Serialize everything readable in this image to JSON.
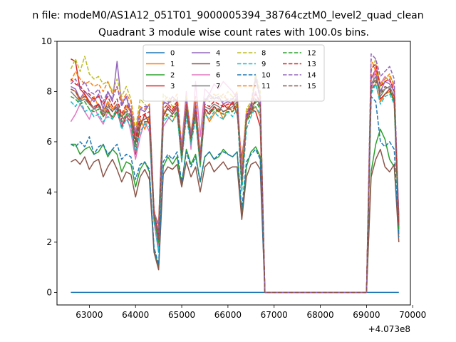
{
  "chart_data": {
    "type": "line",
    "suptitle": "n file: modeM0/AS1A12_051T01_9000005394_38764cztM0_level2_quad_clean",
    "title": "Quadrant 3 module wise count rates with 100.0s bins.",
    "xlabel": "",
    "ylabel": "",
    "x_offset_label": "+4.073e8",
    "xlim": [
      62300,
      69950
    ],
    "ylim": [
      -0.5,
      10
    ],
    "xticks": [
      63000,
      64000,
      65000,
      66000,
      67000,
      68000,
      69000,
      70000
    ],
    "xtick_labels": [
      "63000",
      "64000",
      "65000",
      "66000",
      "67000",
      "68000",
      "69000",
      "70000"
    ],
    "yticks": [
      0,
      2,
      4,
      6,
      8,
      10
    ],
    "ytick_labels": [
      "0",
      "2",
      "4",
      "6",
      "8",
      "10"
    ],
    "legend_position": "top-center",
    "x": [
      62600,
      62700,
      62800,
      62900,
      63000,
      63100,
      63200,
      63300,
      63400,
      63500,
      63600,
      63700,
      63800,
      63900,
      64000,
      64100,
      64200,
      64300,
      64400,
      64500,
      64600,
      64700,
      64800,
      64900,
      65000,
      65100,
      65200,
      65300,
      65400,
      65500,
      65600,
      65700,
      65800,
      65900,
      66000,
      66100,
      66200,
      66300,
      66400,
      66500,
      66600,
      66700,
      66800,
      66900,
      67000,
      68700,
      68800,
      68900,
      69000,
      69100,
      69200,
      69300,
      69400,
      69500,
      69600,
      69700
    ],
    "series": [
      {
        "name": "0",
        "color": "#1f77b4",
        "dash": "solid",
        "values": [
          0,
          0,
          0,
          0,
          0,
          0,
          0,
          0,
          0,
          0,
          0,
          0,
          0,
          0,
          0,
          0,
          0,
          0,
          0,
          0,
          0,
          0,
          0,
          0,
          0,
          0,
          0,
          0,
          0,
          0,
          0,
          0,
          0,
          0,
          0,
          0,
          0,
          0,
          0,
          0,
          0,
          0,
          0,
          0,
          0,
          0,
          0,
          0,
          0,
          0,
          0,
          0,
          0,
          0,
          0,
          0
        ]
      },
      {
        "name": "1",
        "color": "#ff7f0e",
        "dash": "solid",
        "values": [
          8.1,
          8.0,
          7.6,
          7.9,
          7.5,
          7.8,
          7.4,
          7.2,
          7.6,
          7.3,
          7.5,
          7.0,
          7.4,
          7.2,
          6.2,
          6.9,
          6.5,
          7.0,
          3.0,
          2.8,
          7.3,
          7.0,
          6.8,
          7.2,
          5.2,
          7.4,
          6.3,
          7.0,
          5.0,
          7.2,
          6.8,
          7.1,
          7.3,
          6.9,
          7.4,
          7.2,
          7.5,
          4.2,
          6.8,
          7.2,
          7.4,
          7.0,
          0,
          0,
          0,
          0,
          0,
          0,
          0,
          8.1,
          8.3,
          7.6,
          7.9,
          8.0,
          7.7,
          2.5
        ]
      },
      {
        "name": "2",
        "color": "#2ca02c",
        "dash": "solid",
        "values": [
          5.9,
          5.9,
          5.5,
          5.7,
          5.8,
          5.5,
          5.6,
          5.9,
          5.4,
          5.7,
          5.5,
          4.8,
          5.2,
          5.1,
          4.2,
          4.9,
          5.2,
          4.8,
          1.7,
          1.0,
          5.0,
          5.4,
          5.1,
          5.4,
          4.3,
          5.7,
          5.1,
          5.5,
          4.4,
          5.4,
          5.6,
          5.3,
          5.4,
          5.7,
          5.5,
          5.4,
          5.6,
          3.0,
          5.0,
          5.6,
          5.8,
          5.4,
          0,
          0,
          0,
          0,
          0,
          0,
          0,
          4.8,
          5.9,
          6.5,
          6.1,
          5.3,
          5.0,
          2.3
        ]
      },
      {
        "name": "3",
        "color": "#d62728",
        "dash": "solid",
        "values": [
          9.3,
          9.2,
          8.1,
          7.9,
          7.6,
          7.3,
          7.5,
          7.0,
          7.3,
          6.9,
          7.2,
          6.6,
          7.0,
          6.8,
          5.5,
          6.6,
          7.1,
          6.7,
          3.3,
          1.8,
          7.0,
          7.4,
          7.2,
          7.5,
          5.6,
          7.2,
          6.0,
          7.4,
          5.2,
          7.3,
          7.1,
          7.4,
          7.2,
          7.5,
          7.3,
          7.6,
          7.1,
          5.3,
          6.9,
          7.3,
          7.2,
          6.6,
          0,
          0,
          0,
          0,
          0,
          0,
          0,
          8.5,
          8.9,
          7.7,
          7.9,
          8.1,
          7.6,
          3.0
        ]
      },
      {
        "name": "4",
        "color": "#9467bd",
        "dash": "solid",
        "values": [
          8.2,
          8.1,
          7.7,
          8.0,
          7.8,
          7.6,
          7.9,
          7.3,
          8.0,
          7.6,
          9.2,
          7.5,
          7.8,
          7.1,
          6.3,
          7.3,
          7.2,
          7.5,
          3.2,
          2.7,
          7.6,
          7.5,
          7.8,
          7.6,
          5.8,
          7.8,
          6.1,
          7.4,
          5.5,
          7.6,
          7.9,
          7.7,
          7.8,
          7.5,
          7.6,
          7.5,
          7.8,
          4.8,
          7.0,
          7.4,
          8.6,
          7.8,
          0,
          0,
          0,
          0,
          0,
          0,
          0,
          8.6,
          8.7,
          8.0,
          8.4,
          8.3,
          8.0,
          2.8
        ]
      },
      {
        "name": "5",
        "color": "#8c564b",
        "dash": "solid",
        "values": [
          5.2,
          5.3,
          5.1,
          5.4,
          4.9,
          5.2,
          5.3,
          4.6,
          5.0,
          5.3,
          4.9,
          4.4,
          4.8,
          4.7,
          3.8,
          4.6,
          4.9,
          4.5,
          1.6,
          0.9,
          4.7,
          5.0,
          4.9,
          5.1,
          4.2,
          5.2,
          4.6,
          5.0,
          4.0,
          5.0,
          5.2,
          4.8,
          5.0,
          5.2,
          4.9,
          5.0,
          5.0,
          2.9,
          4.6,
          5.1,
          5.2,
          4.9,
          0,
          0,
          0,
          0,
          0,
          0,
          0,
          4.6,
          5.3,
          5.7,
          5.0,
          4.8,
          5.1,
          2.0
        ]
      },
      {
        "name": "6",
        "color": "#e377c2",
        "dash": "solid",
        "values": [
          6.8,
          7.1,
          7.5,
          7.2,
          6.9,
          7.4,
          7.0,
          6.7,
          7.2,
          6.9,
          7.4,
          6.7,
          7.1,
          6.4,
          5.3,
          6.2,
          6.8,
          6.4,
          2.8,
          1.6,
          6.6,
          6.9,
          7.1,
          7.3,
          5.9,
          8.0,
          5.7,
          8.4,
          6.2,
          8.1,
          7.9,
          8.3,
          8.1,
          8.4,
          8.2,
          8.0,
          7.7,
          5.0,
          7.0,
          7.5,
          8.0,
          7.4,
          0,
          0,
          0,
          0,
          0,
          0,
          0,
          8.0,
          9.0,
          8.3,
          8.6,
          8.4,
          8.2,
          2.9
        ]
      },
      {
        "name": "7",
        "color": "#7f7f7f",
        "dash": "solid",
        "values": [
          8.0,
          7.8,
          7.6,
          7.7,
          7.5,
          7.3,
          7.4,
          7.1,
          7.4,
          7.2,
          7.5,
          7.0,
          7.2,
          6.9,
          6.0,
          6.8,
          6.9,
          7.0,
          3.1,
          2.2,
          7.1,
          7.3,
          7.1,
          7.4,
          5.4,
          7.4,
          6.2,
          7.2,
          5.3,
          7.4,
          7.3,
          7.5,
          7.4,
          7.2,
          7.3,
          7.4,
          7.6,
          4.4,
          6.9,
          7.3,
          7.7,
          7.5,
          0,
          0,
          0,
          0,
          0,
          0,
          0,
          8.3,
          8.6,
          7.8,
          8.1,
          8.2,
          7.8,
          2.6
        ]
      },
      {
        "name": "8",
        "color": "#bcbd22",
        "dash": "dashed",
        "values": [
          8.9,
          9.3,
          8.8,
          9.4,
          8.7,
          8.5,
          8.6,
          8.3,
          8.4,
          8.0,
          8.5,
          7.8,
          8.2,
          7.7,
          6.5,
          7.7,
          7.5,
          7.3,
          3.2,
          2.4,
          7.9,
          7.7,
          7.4,
          7.6,
          5.7,
          7.8,
          6.4,
          7.6,
          5.5,
          7.7,
          7.6,
          7.8,
          7.9,
          7.7,
          8.0,
          7.8,
          7.4,
          4.9,
          7.3,
          7.6,
          8.7,
          8.0,
          0,
          0,
          0,
          0,
          0,
          0,
          0,
          8.8,
          9.3,
          8.2,
          8.5,
          8.6,
          8.3,
          2.7
        ]
      },
      {
        "name": "9",
        "color": "#17becf",
        "dash": "dashed",
        "values": [
          7.6,
          7.4,
          7.7,
          7.2,
          7.3,
          7.0,
          7.1,
          6.8,
          7.0,
          6.9,
          7.3,
          6.5,
          6.9,
          6.6,
          5.6,
          6.4,
          6.7,
          6.6,
          2.9,
          1.6,
          6.8,
          7.0,
          6.8,
          7.1,
          5.2,
          7.0,
          5.9,
          6.9,
          5.0,
          7.1,
          6.9,
          7.2,
          7.0,
          6.9,
          7.2,
          7.0,
          7.3,
          4.0,
          6.5,
          7.0,
          7.4,
          7.1,
          0,
          0,
          0,
          0,
          0,
          0,
          0,
          7.9,
          8.3,
          7.5,
          7.8,
          7.9,
          7.5,
          2.4
        ]
      },
      {
        "name": "10",
        "color": "#1f77b4",
        "dash": "dashed",
        "values": [
          5.9,
          5.8,
          6.0,
          5.8,
          6.2,
          5.5,
          5.8,
          5.9,
          5.5,
          5.7,
          5.9,
          5.3,
          5.5,
          5.4,
          4.5,
          5.1,
          5.2,
          4.9,
          1.8,
          1.1,
          5.2,
          5.5,
          5.3,
          5.6,
          4.4,
          5.6,
          5.0,
          5.4,
          4.4,
          5.4,
          5.6,
          5.3,
          5.5,
          5.6,
          5.5,
          5.4,
          5.6,
          3.3,
          5.2,
          5.5,
          5.7,
          5.3,
          0,
          0,
          0,
          0,
          0,
          0,
          0,
          7.8,
          7.6,
          6.0,
          5.8,
          6.0,
          5.7,
          2.2
        ]
      },
      {
        "name": "11",
        "color": "#ff7f0e",
        "dash": "dashed",
        "values": [
          8.4,
          8.8,
          8.5,
          8.3,
          8.4,
          8.2,
          8.3,
          8.0,
          8.4,
          7.9,
          8.2,
          7.6,
          7.9,
          7.6,
          6.4,
          7.4,
          7.3,
          7.5,
          3.3,
          2.5,
          7.6,
          7.8,
          7.6,
          7.9,
          5.8,
          7.7,
          6.3,
          7.8,
          5.4,
          7.6,
          7.8,
          7.9,
          7.7,
          7.9,
          7.6,
          7.7,
          8.0,
          4.7,
          7.2,
          7.5,
          8.4,
          7.8,
          0,
          0,
          0,
          0,
          0,
          0,
          0,
          9.3,
          8.8,
          8.3,
          8.5,
          8.7,
          8.2,
          2.8
        ]
      },
      {
        "name": "12",
        "color": "#2ca02c",
        "dash": "dashed",
        "values": [
          7.8,
          7.7,
          7.5,
          7.6,
          7.3,
          7.2,
          7.3,
          7.0,
          7.2,
          7.0,
          7.3,
          6.8,
          7.1,
          6.8,
          5.8,
          6.7,
          6.8,
          6.8,
          3.0,
          2.0,
          6.9,
          7.1,
          7.0,
          7.2,
          5.3,
          7.2,
          6.0,
          7.1,
          5.1,
          7.2,
          7.1,
          7.3,
          7.2,
          7.1,
          7.2,
          7.2,
          7.4,
          4.3,
          6.8,
          7.1,
          7.6,
          7.3,
          0,
          0,
          0,
          0,
          0,
          0,
          0,
          8.0,
          8.4,
          8.1,
          7.9,
          8.0,
          7.6,
          2.5
        ]
      },
      {
        "name": "13",
        "color": "#d62728",
        "dash": "dashed",
        "values": [
          8.5,
          8.3,
          8.2,
          8.0,
          7.9,
          7.7,
          7.8,
          7.5,
          7.8,
          7.4,
          7.7,
          7.1,
          7.5,
          7.2,
          6.1,
          7.0,
          7.1,
          7.2,
          3.2,
          2.3,
          7.3,
          7.5,
          7.3,
          7.6,
          5.5,
          7.5,
          6.2,
          7.4,
          5.3,
          7.5,
          7.4,
          7.6,
          7.5,
          7.4,
          7.5,
          7.5,
          7.7,
          4.5,
          7.0,
          7.4,
          7.9,
          7.6,
          0,
          0,
          0,
          0,
          0,
          0,
          0,
          8.9,
          9.1,
          8.2,
          8.4,
          8.5,
          8.0,
          2.7
        ]
      },
      {
        "name": "14",
        "color": "#9467bd",
        "dash": "dashed",
        "values": [
          8.3,
          8.5,
          8.1,
          8.4,
          8.0,
          7.9,
          8.1,
          7.6,
          8.0,
          7.7,
          8.2,
          7.4,
          7.8,
          7.3,
          6.3,
          7.3,
          7.4,
          7.4,
          3.2,
          2.4,
          7.5,
          7.6,
          7.6,
          7.7,
          5.7,
          7.7,
          6.3,
          7.6,
          5.4,
          7.7,
          7.7,
          7.8,
          7.7,
          7.6,
          7.7,
          7.7,
          7.9,
          4.6,
          7.1,
          7.5,
          8.5,
          7.7,
          0,
          0,
          0,
          0,
          0,
          0,
          0,
          9.5,
          9.3,
          8.6,
          8.8,
          9.0,
          8.5,
          2.9
        ]
      },
      {
        "name": "15",
        "color": "#8c564b",
        "dash": "dashed",
        "values": [
          8.1,
          8.0,
          7.7,
          7.8,
          7.5,
          7.4,
          7.5,
          7.2,
          7.5,
          7.2,
          7.4,
          6.9,
          7.3,
          7.0,
          5.9,
          6.8,
          6.9,
          7.0,
          3.1,
          2.1,
          7.1,
          7.3,
          7.1,
          7.4,
          5.4,
          7.3,
          6.1,
          7.2,
          5.2,
          7.3,
          7.2,
          7.4,
          7.3,
          7.2,
          7.3,
          7.3,
          7.5,
          4.4,
          6.9,
          7.2,
          7.7,
          7.4,
          0,
          0,
          0,
          0,
          0,
          0,
          0,
          8.2,
          8.5,
          7.9,
          8.2,
          8.1,
          7.8,
          2.6
        ]
      }
    ]
  }
}
